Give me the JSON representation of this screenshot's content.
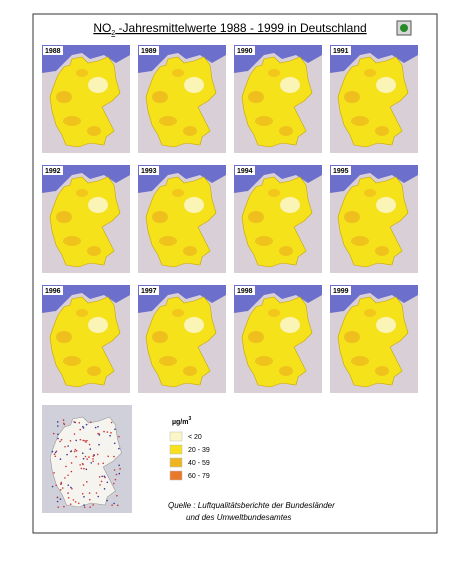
{
  "title": {
    "prefix": "NO",
    "subscript": "2",
    "rest": " -Jahresmittelwerte  1988 - 1999  in Deutschland"
  },
  "maps": [
    {
      "year": "1988"
    },
    {
      "year": "1989"
    },
    {
      "year": "1990"
    },
    {
      "year": "1991"
    },
    {
      "year": "1992"
    },
    {
      "year": "1993"
    },
    {
      "year": "1994"
    },
    {
      "year": "1995"
    },
    {
      "year": "1996"
    },
    {
      "year": "1997"
    },
    {
      "year": "1998"
    },
    {
      "year": "1999"
    }
  ],
  "legend": {
    "unit": "µg/m",
    "unit_superscript": "3",
    "items": [
      {
        "label": "< 20",
        "color": "#fbf6c8"
      },
      {
        "label": "20 - 39",
        "color": "#f5e21a"
      },
      {
        "label": "40 - 59",
        "color": "#eeb61e"
      },
      {
        "label": "60 - 79",
        "color": "#e8782c"
      }
    ]
  },
  "source": {
    "line1": "Quelle :  Luftqualitätsberichte der Bundesländer",
    "line2": "und des Umweltbundesamtes"
  }
}
